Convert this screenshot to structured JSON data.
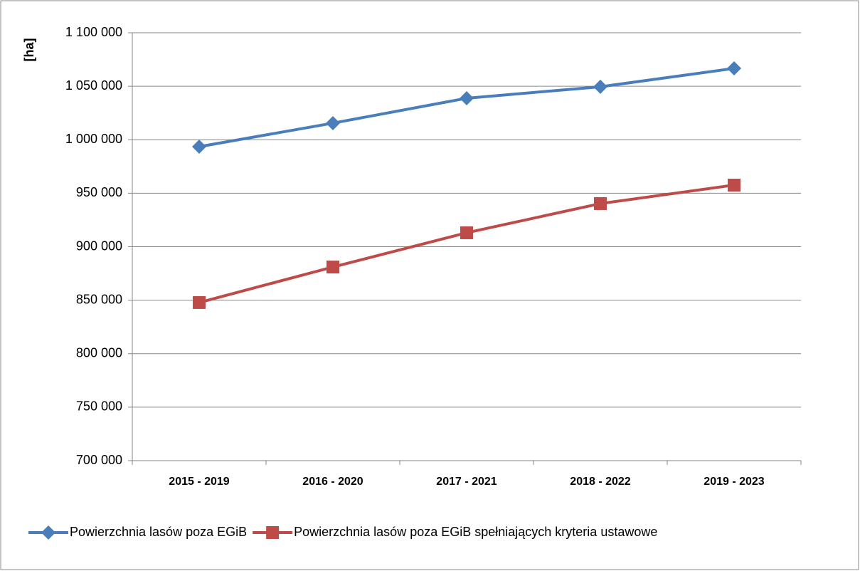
{
  "chart_data": {
    "type": "line",
    "y_label": "[ha]",
    "categories": [
      "2015 - 2019",
      "2016 - 2020",
      "2017 - 2021",
      "2018 - 2022",
      "2019 - 2023"
    ],
    "series": [
      {
        "name": "Powierzchnia lasów poza EGiB",
        "color": "#4a7ebb",
        "marker": "diamond",
        "values": [
          993500,
          1015500,
          1038800,
          1049500,
          1066700
        ]
      },
      {
        "name": "Powierzchnia lasów poza EGiB spełniających kryteria ustawowe",
        "color": "#be4b48",
        "marker": "square",
        "values": [
          847800,
          881000,
          913000,
          940300,
          957600
        ]
      }
    ],
    "ylim": [
      700000,
      1100000
    ],
    "yticks": [
      {
        "value": 700000,
        "label": "700 000"
      },
      {
        "value": 750000,
        "label": "750 000"
      },
      {
        "value": 800000,
        "label": "800 000"
      },
      {
        "value": 850000,
        "label": "850 000"
      },
      {
        "value": 900000,
        "label": "900 000"
      },
      {
        "value": 950000,
        "label": "950 000"
      },
      {
        "value": 1000000,
        "label": "1 000 000"
      },
      {
        "value": 1050000,
        "label": "1 050 000"
      },
      {
        "value": 1100000,
        "label": "1 100 000"
      }
    ],
    "grid": true,
    "legend": "bottom"
  }
}
